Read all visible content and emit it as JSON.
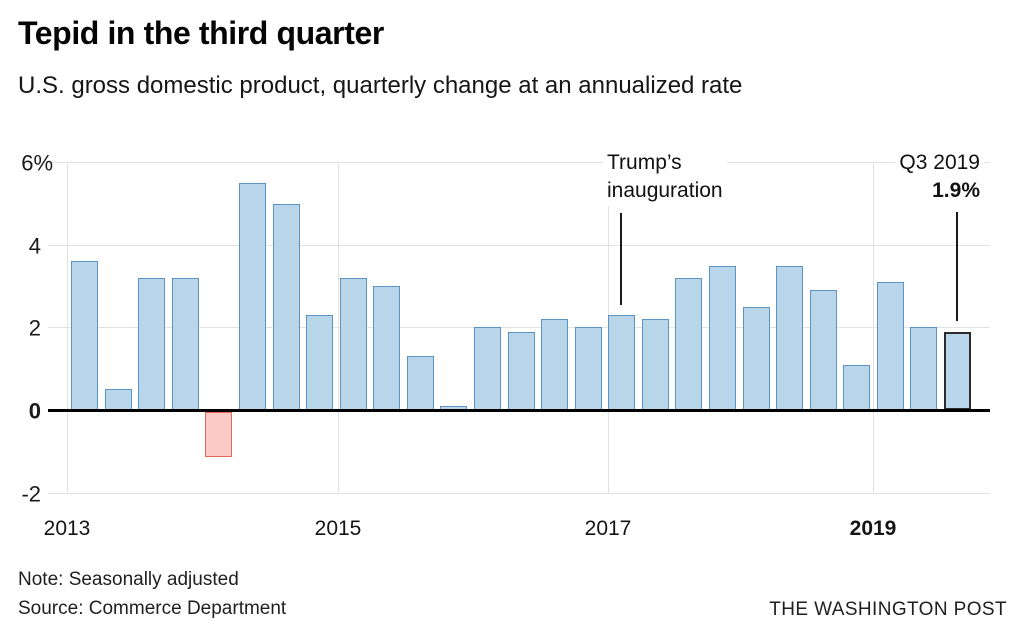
{
  "header": {
    "title": "Tepid in the third quarter",
    "subtitle": "U.S. gross domestic product, quarterly change at an annualized rate"
  },
  "chart_data": {
    "type": "bar",
    "title": "Tepid in the third quarter",
    "subtitle": "U.S. gross domestic product, quarterly change at an annualized rate",
    "x": [
      "2013 Q1",
      "2013 Q2",
      "2013 Q3",
      "2013 Q4",
      "2014 Q1",
      "2014 Q2",
      "2014 Q3",
      "2014 Q4",
      "2015 Q1",
      "2015 Q2",
      "2015 Q3",
      "2015 Q4",
      "2016 Q1",
      "2016 Q2",
      "2016 Q3",
      "2016 Q4",
      "2017 Q1",
      "2017 Q2",
      "2017 Q3",
      "2017 Q4",
      "2018 Q1",
      "2018 Q2",
      "2018 Q3",
      "2018 Q4",
      "2019 Q1",
      "2019 Q2",
      "2019 Q3"
    ],
    "values": [
      3.6,
      0.5,
      3.2,
      3.2,
      -1.1,
      5.5,
      5.0,
      2.3,
      3.2,
      3.0,
      1.3,
      0.1,
      2.0,
      1.9,
      2.2,
      2.0,
      2.3,
      2.2,
      3.2,
      3.5,
      2.5,
      3.5,
      2.9,
      1.1,
      3.1,
      2.0,
      1.9
    ],
    "unit": "%",
    "ylim": [
      -2,
      6
    ],
    "grid": true,
    "y_ticks": [
      {
        "label": "6%",
        "value": 6,
        "bold": false
      },
      {
        "label": "4",
        "value": 4,
        "bold": false
      },
      {
        "label": "2",
        "value": 2,
        "bold": false
      },
      {
        "label": "0",
        "value": 0,
        "bold": true
      },
      {
        "label": "-2",
        "value": -2,
        "bold": false
      }
    ],
    "x_ticks": [
      {
        "label": "2013",
        "bold": false
      },
      {
        "label": "2015",
        "bold": false
      },
      {
        "label": "2017",
        "bold": false
      },
      {
        "label": "2019",
        "bold": true
      }
    ],
    "highlight": "2019 Q3",
    "annotations": [
      {
        "id": "trump-inauguration",
        "lines": [
          "Trump’s",
          "inauguration"
        ],
        "target": "2017 Q1"
      },
      {
        "id": "q3-2019-value",
        "lines": [
          "Q3 2019",
          "1.9%"
        ],
        "target": "2019 Q3"
      }
    ],
    "colors": {
      "bar_fill": "#b9d5e9",
      "bar_stroke": "#5b94c4",
      "negative_fill": "#f9c9c5",
      "negative_stroke": "#e2695d",
      "highlight_stroke": "#2b2b2b",
      "baseline": "#000000",
      "gridline": "#e2e2e2"
    }
  },
  "footer": {
    "note": "Note: Seasonally adjusted",
    "source": "Source: Commerce Department",
    "publisher": "THE WASHINGTON POST"
  }
}
